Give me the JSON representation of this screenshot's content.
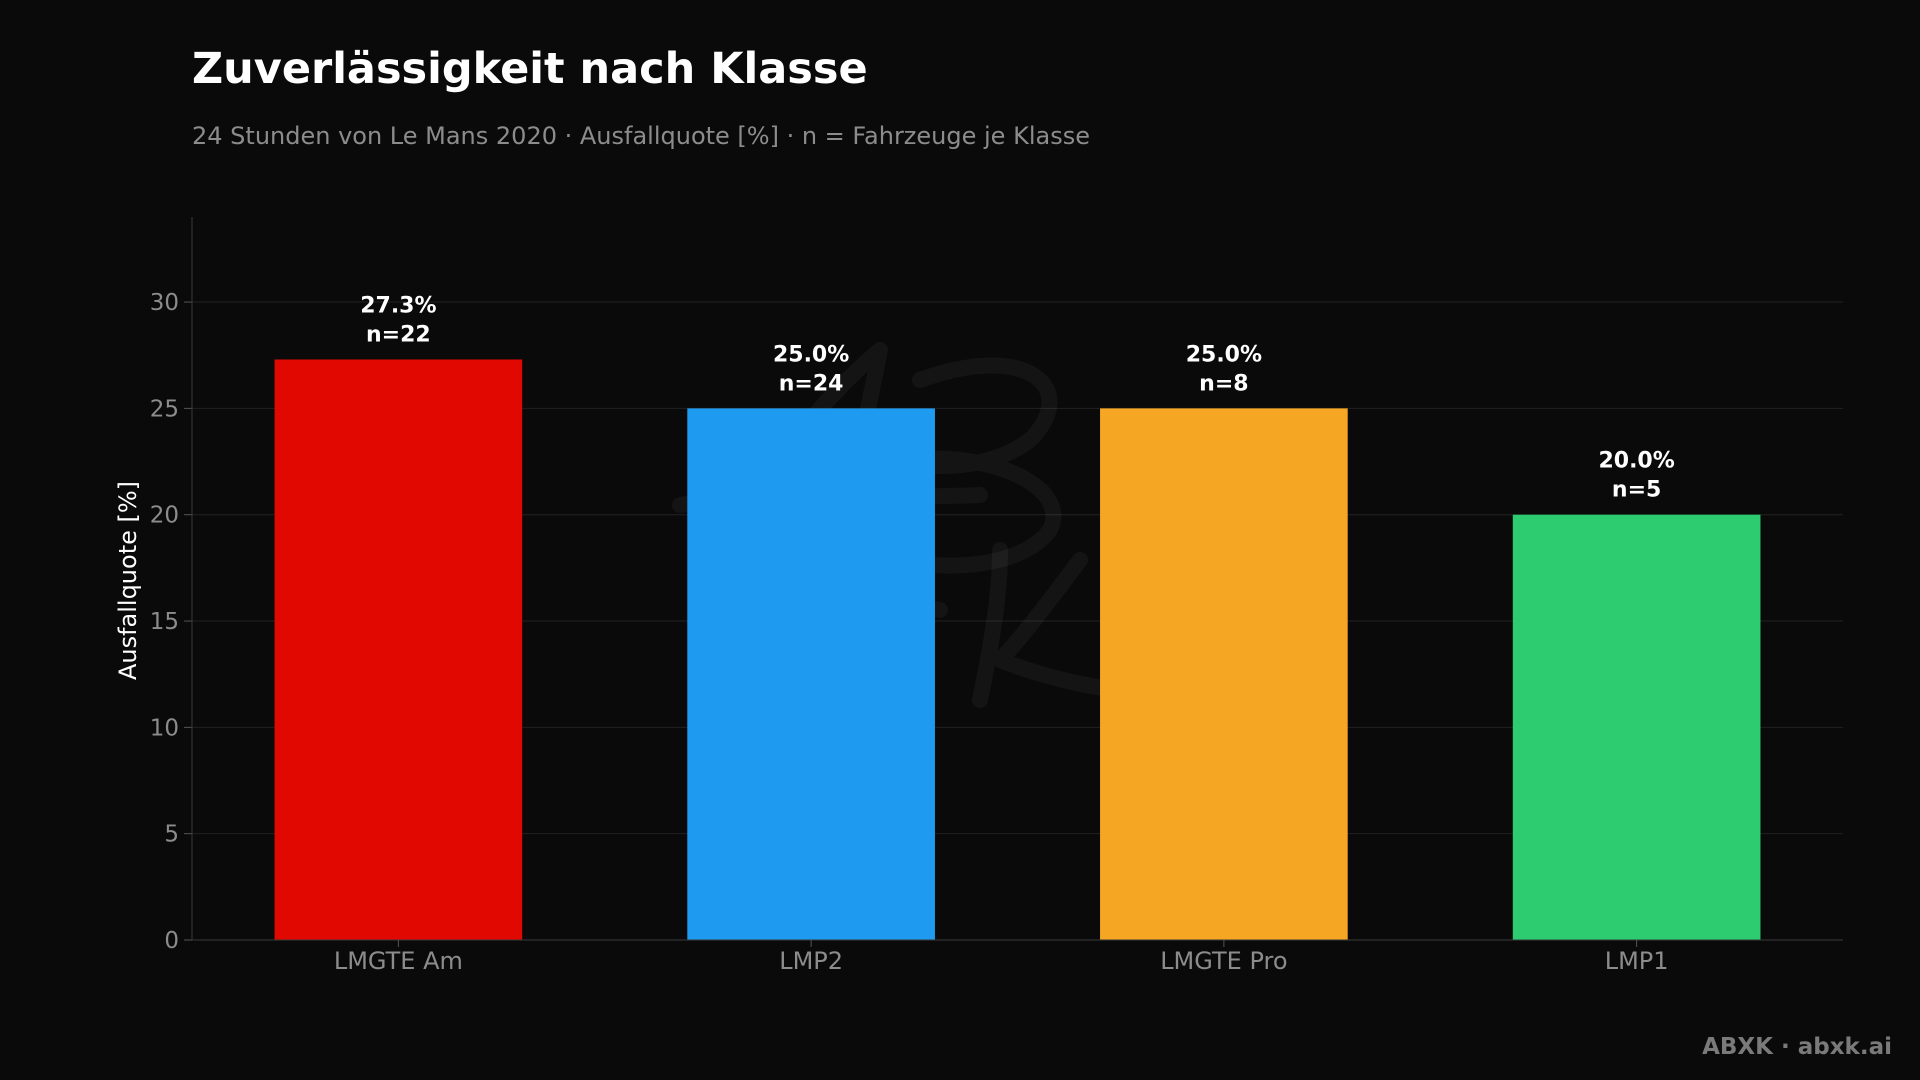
{
  "header": {
    "title": "Zuverlässigkeit nach Klasse",
    "subtitle": "24 Stunden von Le Mans 2020 · Ausfallquote [%] · n = Fahrzeuge je Klasse"
  },
  "footer": {
    "credit": "ABXK · abxk.ai"
  },
  "watermark": {
    "text": "ABXK"
  },
  "chart_data": {
    "type": "bar",
    "title": "Zuverlässigkeit nach Klasse",
    "subtitle": "24 Stunden von Le Mans 2020 · Ausfallquote [%] · n = Fahrzeuge je Klasse",
    "xlabel": "",
    "ylabel": "Ausfallquote [%]",
    "categories": [
      "LMGTE Am",
      "LMP2",
      "LMGTE Pro",
      "LMP1"
    ],
    "values": [
      27.3,
      25.0,
      25.0,
      20.0
    ],
    "value_labels": [
      "27.3%",
      "25.0%",
      "25.0%",
      "20.0%"
    ],
    "n_labels": [
      "n=22",
      "n=24",
      "n=8",
      "n=5"
    ],
    "colors": [
      "#e00800",
      "#1e9bf0",
      "#f5a623",
      "#2ecc71"
    ],
    "ylim": [
      0,
      34
    ],
    "yticks": [
      0,
      5,
      10,
      15,
      20,
      25,
      30
    ],
    "grid": true,
    "legend": "none",
    "background": "#0a0a0a"
  }
}
